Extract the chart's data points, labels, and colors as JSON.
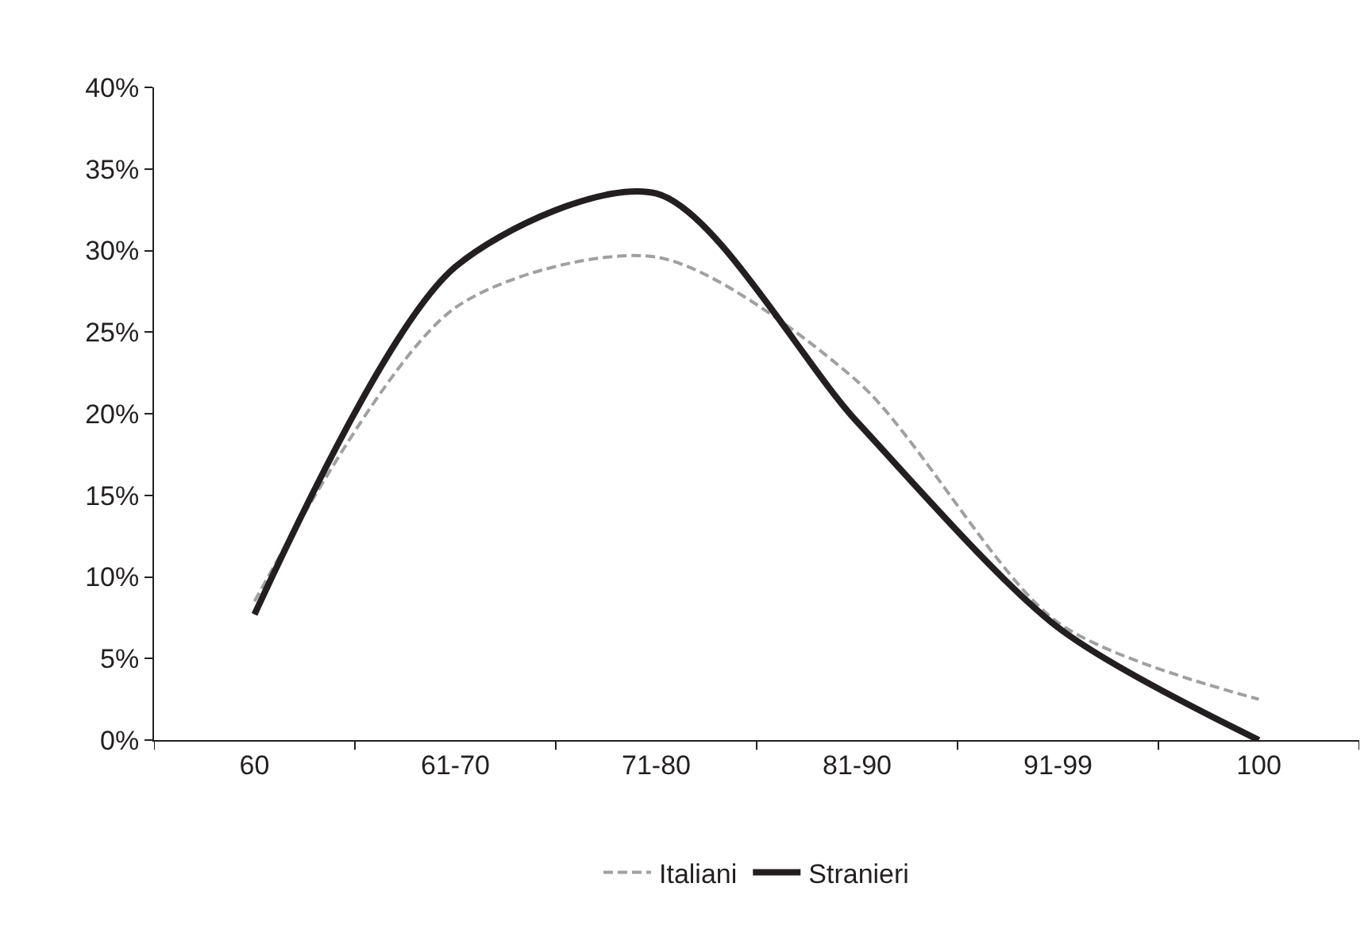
{
  "chart_data": {
    "type": "line",
    "categories": [
      "60",
      "61-70",
      "71-80",
      "81-90",
      "91-99",
      "100"
    ],
    "series": [
      {
        "name": "Italiani",
        "color": "#a0a0a0",
        "line_style": "dashed",
        "values": [
          0.085,
          0.265,
          0.296,
          0.22,
          0.072,
          0.025
        ]
      },
      {
        "name": "Stranieri",
        "color": "#231f20",
        "line_style": "solid",
        "values": [
          0.077,
          0.29,
          0.335,
          0.195,
          0.069,
          0.0
        ]
      }
    ],
    "ylim": [
      0,
      0.4
    ],
    "yticks": [
      {
        "value": 0,
        "label": "0%"
      },
      {
        "value": 0.05,
        "label": "5%"
      },
      {
        "value": 0.1,
        "label": "10%"
      },
      {
        "value": 0.15,
        "label": "15%"
      },
      {
        "value": 0.2,
        "label": "20%"
      },
      {
        "value": 0.25,
        "label": "25%"
      },
      {
        "value": 0.3,
        "label": "30%"
      },
      {
        "value": 0.35,
        "label": "35%"
      },
      {
        "value": 0.4,
        "label": "40%"
      }
    ],
    "grid": false,
    "legend": "bottom",
    "marker": "none"
  }
}
